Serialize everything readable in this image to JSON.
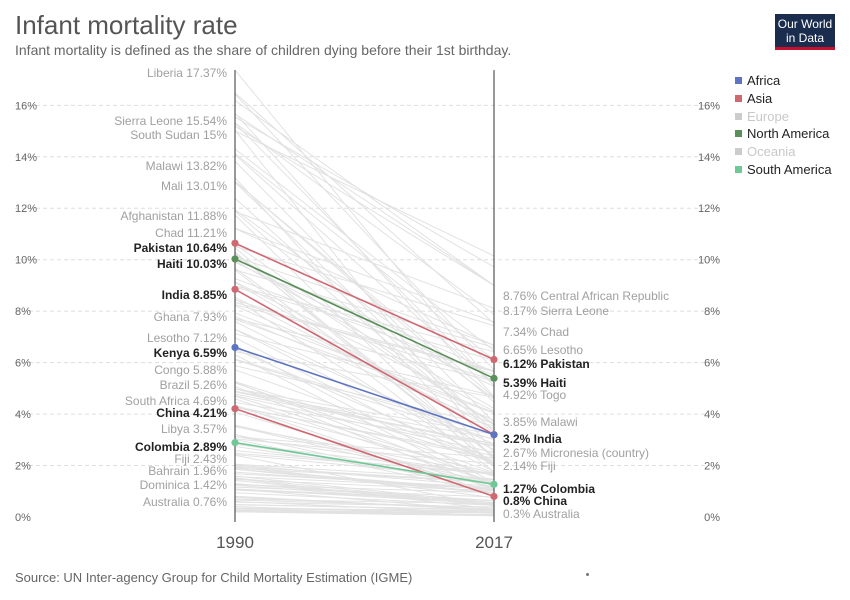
{
  "header": {
    "title": "Infant mortality rate",
    "subtitle": "Infant mortality is defined as the share of children dying before their 1st birthday.",
    "logo_line1": "Our World",
    "logo_line2": "in Data"
  },
  "footer": {
    "source": "Source: UN Inter-agency Group for Child Mortality Estimation (IGME)"
  },
  "colors": {
    "Africa": "#5d74c2",
    "Asia": "#d06872",
    "Europe": "#cccccc",
    "North America": "#5a8f59",
    "Oceania": "#cccccc",
    "South America": "#6fc996",
    "background_line": "#e2e2e2"
  },
  "legend": [
    {
      "name": "Africa",
      "active": true
    },
    {
      "name": "Asia",
      "active": true
    },
    {
      "name": "Europe",
      "active": false
    },
    {
      "name": "North America",
      "active": true
    },
    {
      "name": "Oceania",
      "active": false
    },
    {
      "name": "South America",
      "active": true
    }
  ],
  "chart_data": {
    "type": "line",
    "x": [
      "1990",
      "2017"
    ],
    "ylim": [
      0,
      17.37
    ],
    "y_ticks": [
      "0%",
      "2%",
      "4%",
      "6%",
      "8%",
      "10%",
      "12%",
      "14%",
      "16%"
    ],
    "y_tick_values": [
      0,
      2,
      4,
      6,
      8,
      10,
      12,
      14,
      16
    ],
    "grid": true,
    "legend_position": "right",
    "highlighted": [
      {
        "name": "Pakistan",
        "continent": "Asia",
        "v1990": 10.64,
        "v2017": 6.12
      },
      {
        "name": "Haiti",
        "continent": "North America",
        "v1990": 10.03,
        "v2017": 5.39
      },
      {
        "name": "India",
        "continent": "Asia",
        "v1990": 8.85,
        "v2017": 3.2
      },
      {
        "name": "Kenya",
        "continent": "Africa",
        "v1990": 6.59,
        "v2017": 3.2
      },
      {
        "name": "China",
        "continent": "Asia",
        "v1990": 4.21,
        "v2017": 0.8
      },
      {
        "name": "Colombia",
        "continent": "South America",
        "v1990": 2.89,
        "v2017": 1.27
      }
    ],
    "labels_1990": [
      {
        "name": "Liberia",
        "value": 17.37
      },
      {
        "name": "Sierra Leone",
        "value": 15.54
      },
      {
        "name": "South Sudan",
        "value": 15
      },
      {
        "name": "Malawi",
        "value": 13.82
      },
      {
        "name": "Mali",
        "value": 13.01
      },
      {
        "name": "Afghanistan",
        "value": 11.88
      },
      {
        "name": "Chad",
        "value": 11.21
      },
      {
        "name": "Pakistan",
        "value": 10.64,
        "bold": true
      },
      {
        "name": "Haiti",
        "value": 10.03,
        "bold": true
      },
      {
        "name": "India",
        "value": 8.85,
        "bold": true
      },
      {
        "name": "Ghana",
        "value": 7.93
      },
      {
        "name": "Lesotho",
        "value": 7.12
      },
      {
        "name": "Kenya",
        "value": 6.59,
        "bold": true
      },
      {
        "name": "Congo",
        "value": 5.88
      },
      {
        "name": "Brazil",
        "value": 5.26
      },
      {
        "name": "South Africa",
        "value": 4.69
      },
      {
        "name": "China",
        "value": 4.21,
        "bold": true
      },
      {
        "name": "Libya",
        "value": 3.57
      },
      {
        "name": "Colombia",
        "value": 2.89,
        "bold": true
      },
      {
        "name": "Fiji",
        "value": 2.43
      },
      {
        "name": "Bahrain",
        "value": 1.96
      },
      {
        "name": "Dominica",
        "value": 1.42
      },
      {
        "name": "Australia",
        "value": 0.76
      }
    ],
    "labels_2017": [
      {
        "name": "Central African Republic",
        "value": 8.76
      },
      {
        "name": "Sierra Leone",
        "value": 8.17
      },
      {
        "name": "Chad",
        "value": 7.34
      },
      {
        "name": "Lesotho",
        "value": 6.65
      },
      {
        "name": "Pakistan",
        "value": 6.12,
        "bold": true
      },
      {
        "name": "Haiti",
        "value": 5.39,
        "bold": true
      },
      {
        "name": "Togo",
        "value": 4.92
      },
      {
        "name": "Malawi",
        "value": 3.85
      },
      {
        "name": "India",
        "value": 3.2,
        "bold": true
      },
      {
        "name": "Micronesia (country)",
        "value": 2.67
      },
      {
        "name": "Fiji",
        "value": 2.14
      },
      {
        "name": "Colombia",
        "value": 1.27,
        "bold": true
      },
      {
        "name": "China",
        "value": 0.8,
        "bold": true
      },
      {
        "name": "Australia",
        "value": 0.3
      }
    ]
  }
}
